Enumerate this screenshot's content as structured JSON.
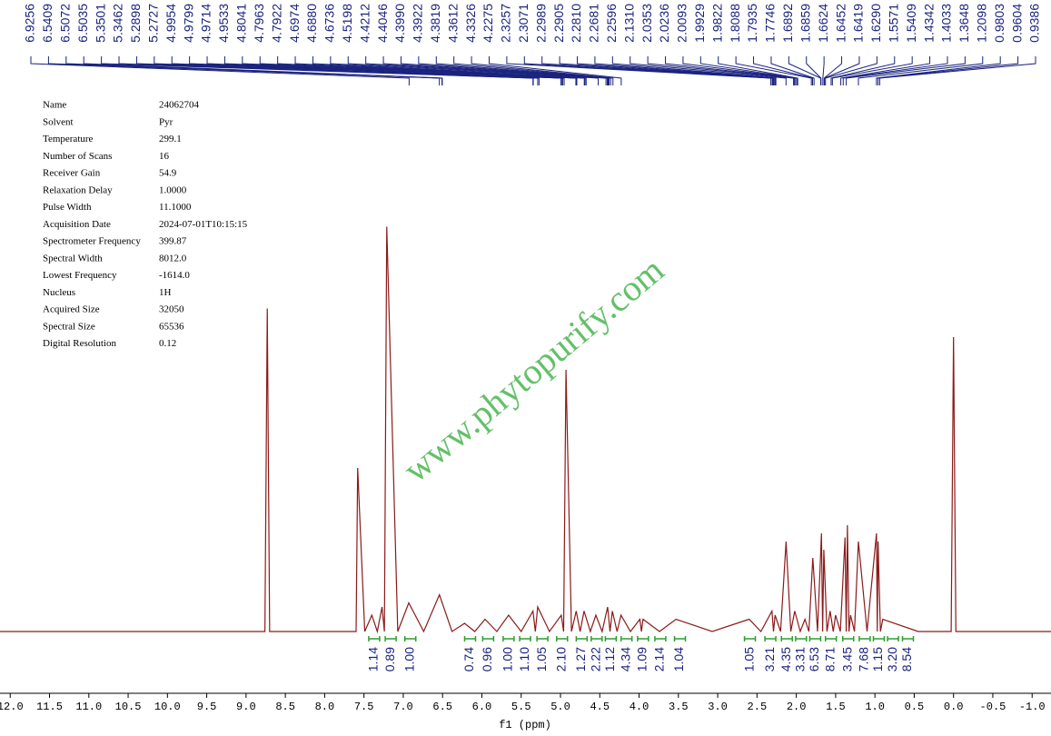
{
  "chart_data": {
    "type": "line",
    "xlabel": "f1 (ppm)",
    "xlim": [
      12.13,
      -1.24
    ],
    "ylim": [
      0,
      100
    ],
    "xticks": [
      {
        "value": 12,
        "label": "12.0"
      },
      11.5,
      {
        "value": 11,
        "label": "11.0"
      },
      10.5,
      {
        "value": 10,
        "label": "10.0"
      },
      9.5,
      {
        "value": 9,
        "label": "9.0"
      },
      8.5,
      {
        "value": 8,
        "label": "8.0"
      },
      7.5,
      {
        "value": 7,
        "label": "7.0"
      },
      6.5,
      {
        "value": 6,
        "label": "6.0"
      },
      5.5,
      {
        "value": 5,
        "label": "5.0"
      },
      4.5,
      {
        "value": 4,
        "label": "4.0"
      },
      3.5,
      {
        "value": 3,
        "label": "3.0"
      },
      2.5,
      {
        "value": 2,
        "label": "2.0"
      },
      1.5,
      {
        "value": 1,
        "label": "1.0"
      },
      0.5,
      {
        "value": 0,
        "label": "0.0"
      },
      -0.5,
      {
        "value": -1,
        "label": "-1.0"
      }
    ],
    "series": [
      {
        "color": "#8b1a1a",
        "x": [
          12.13,
          8.76,
          8.73,
          8.7,
          7.6,
          7.58,
          7.49,
          7.4,
          7.33,
          7.27,
          7.24,
          7.21,
          7.07,
          6.93,
          6.74,
          6.54,
          6.38,
          6.22,
          6.09,
          5.96,
          5.81,
          5.66,
          5.5,
          5.35,
          5.32,
          5.29,
          5.14,
          4.99,
          4.96,
          4.93,
          4.86,
          4.8,
          4.75,
          4.7,
          4.62,
          4.55,
          4.47,
          4.4,
          4.37,
          4.34,
          4.28,
          4.23,
          4.11,
          3.99,
          3.97,
          3.95,
          3.74,
          3.53,
          3.07,
          2.6,
          2.45,
          2.31,
          2.29,
          2.27,
          2.2,
          2.13,
          2.07,
          2.02,
          1.95,
          1.89,
          1.84,
          1.79,
          1.73,
          1.68,
          1.665,
          1.65,
          1.61,
          1.57,
          1.53,
          1.5,
          1.44,
          1.38,
          1.365,
          1.35,
          1.33,
          1.31,
          1.26,
          1.21,
          1.1,
          0.98,
          0.97,
          0.96,
          0.93,
          0.9,
          0.45,
          0.03,
          0.0,
          -0.03,
          -1.24
        ],
        "values": [
          0,
          0,
          79,
          0,
          0,
          40,
          0,
          4,
          0,
          6,
          0,
          99,
          0,
          7,
          0,
          9,
          0,
          2,
          0,
          3,
          0,
          4,
          0,
          5,
          0,
          6,
          0,
          4,
          0,
          64,
          0,
          5,
          0,
          5,
          0,
          4,
          0,
          6,
          0,
          5,
          0,
          4,
          0,
          3,
          0,
          3,
          0,
          3,
          0,
          3,
          0,
          5,
          0,
          4,
          0,
          22,
          0,
          5,
          0,
          3,
          0,
          18,
          0,
          24,
          0,
          20,
          0,
          5,
          0,
          4,
          0,
          23,
          0,
          26,
          0,
          4,
          0,
          22,
          0,
          24,
          0,
          22,
          0,
          3,
          0,
          0,
          72,
          0,
          0
        ]
      }
    ],
    "peak_labels": [
      6.9256,
      6.5409,
      6.5072,
      6.5035,
      5.3501,
      5.3462,
      5.2898,
      5.2727,
      4.9954,
      4.9799,
      4.9714,
      4.9533,
      4.8041,
      4.7963,
      4.7922,
      4.6974,
      {
        "value": 4.688,
        "label": "4.6880"
      },
      4.6736,
      4.5198,
      4.4212,
      4.4046,
      {
        "value": 4.399,
        "label": "4.3990"
      },
      4.3922,
      4.3819,
      4.3612,
      4.3326,
      4.2275,
      2.3257,
      2.3071,
      2.2989,
      2.2905,
      {
        "value": 2.281,
        "label": "2.2810"
      },
      2.2681,
      2.2596,
      {
        "value": 2.131,
        "label": "2.1310"
      },
      2.0353,
      2.0236,
      2.0093,
      1.9929,
      1.9822,
      1.8088,
      1.7935,
      1.7746,
      1.6892,
      1.6859,
      1.6624,
      1.6452,
      1.6419,
      {
        "value": 1.629,
        "label": "1.6290"
      },
      1.5571,
      1.5409,
      1.4342,
      1.4033,
      1.3648,
      1.2098,
      0.9803,
      0.9604,
      0.9386
    ],
    "integrals": {
      "x": [
        7.37,
        7.16,
        6.91,
        6.15,
        5.92,
        5.66,
        5.45,
        5.23,
        4.98,
        4.73,
        4.54,
        4.36,
        4.16,
        3.95,
        3.73,
        3.48,
        2.59,
        2.33,
        2.12,
        1.94,
        1.76,
        1.56,
        1.34,
        1.13,
        0.95,
        0.77,
        0.58
      ],
      "values": [
        1.14,
        0.89,
        1.0,
        0.74,
        0.96,
        1.0,
        1.1,
        1.05,
        2.1,
        1.27,
        2.22,
        1.12,
        4.34,
        1.09,
        2.14,
        1.04,
        1.05,
        3.21,
        4.35,
        3.31,
        6.53,
        8.71,
        3.45,
        7.68,
        1.15,
        3.2,
        8.54
      ],
      "value_labels": [
        "1.14",
        "0.89",
        "1.00",
        "0.74",
        "0.96",
        "1.00",
        "1.10",
        "1.05",
        "2.10",
        "1.27",
        "2.22",
        "1.12",
        "4.34",
        "1.09",
        "2.14",
        "1.04",
        "1.05",
        "3.21",
        "4.35",
        "3.31",
        "6.53",
        "8.71",
        "3.45",
        "7.68",
        "1.15",
        "3.20",
        "8.54"
      ]
    },
    "watermark": "www.phytopurify.com",
    "parameters": [
      [
        "Name",
        "24062704"
      ],
      [
        "Solvent",
        "Pyr"
      ],
      [
        "Temperature",
        "299.1"
      ],
      [
        "Number of Scans",
        "16"
      ],
      [
        "Receiver Gain",
        "54.9"
      ],
      [
        "Relaxation Delay",
        "1.0000"
      ],
      [
        "Pulse Width",
        "11.1000"
      ],
      [
        "Acquisition Date",
        "2024-07-01T10:15:15"
      ],
      [
        "Spectrometer Frequency",
        "399.87"
      ],
      [
        "Spectral Width",
        "8012.0"
      ],
      [
        "Lowest Frequency",
        "-1614.0"
      ],
      [
        "Nucleus",
        "1H"
      ],
      [
        "Acquired Size",
        "32050"
      ],
      [
        "Spectral Size",
        "65536"
      ],
      [
        "Digital Resolution",
        "0.12"
      ]
    ]
  }
}
